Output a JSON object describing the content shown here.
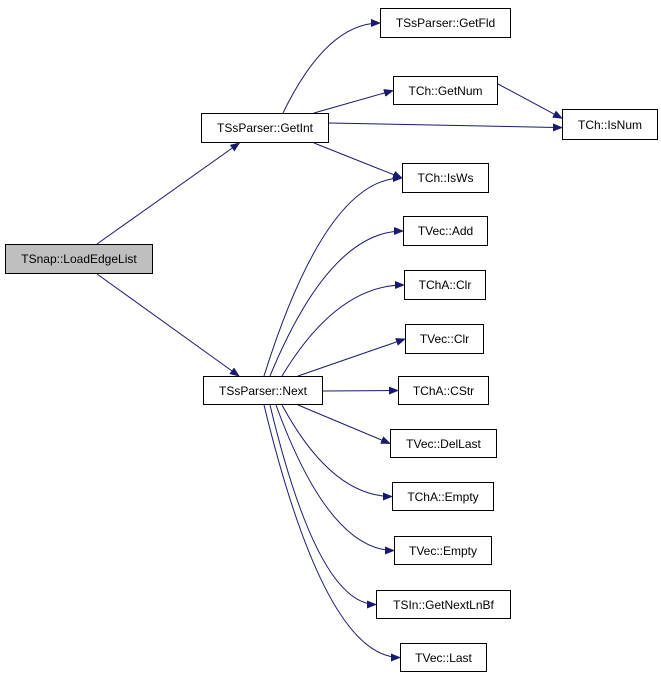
{
  "colors": {
    "edge": "#191970",
    "root_fill": "#bfbfbf",
    "node_fill": "#ffffff",
    "border": "#000000"
  },
  "nodes": [
    {
      "id": "root",
      "label": "TSnap::LoadEdgeList",
      "root": true
    },
    {
      "id": "getint",
      "label": "TSsParser::GetInt"
    },
    {
      "id": "getfld",
      "label": "TSsParser::GetFld"
    },
    {
      "id": "getnum",
      "label": "TCh::GetNum"
    },
    {
      "id": "isnum",
      "label": "TCh::IsNum"
    },
    {
      "id": "isws",
      "label": "TCh::IsWs"
    },
    {
      "id": "vecadd",
      "label": "TVec::Add"
    },
    {
      "id": "chaclr",
      "label": "TChA::Clr"
    },
    {
      "id": "vecclr",
      "label": "TVec::Clr"
    },
    {
      "id": "next",
      "label": "TSsParser::Next"
    },
    {
      "id": "cstr",
      "label": "TChA::CStr"
    },
    {
      "id": "dellast",
      "label": "TVec::DelLast"
    },
    {
      "id": "chaempty",
      "label": "TChA::Empty"
    },
    {
      "id": "vecempty",
      "label": "TVec::Empty"
    },
    {
      "id": "getnextlnbf",
      "label": "TSIn::GetNextLnBf"
    },
    {
      "id": "last",
      "label": "TVec::Last"
    }
  ],
  "edges": [
    [
      "root",
      "getint"
    ],
    [
      "root",
      "next"
    ],
    [
      "getint",
      "getfld"
    ],
    [
      "getint",
      "getnum"
    ],
    [
      "getint",
      "isnum"
    ],
    [
      "getint",
      "isws"
    ],
    [
      "getnum",
      "isnum"
    ],
    [
      "next",
      "isws"
    ],
    [
      "next",
      "vecadd"
    ],
    [
      "next",
      "chaclr"
    ],
    [
      "next",
      "vecclr"
    ],
    [
      "next",
      "cstr"
    ],
    [
      "next",
      "dellast"
    ],
    [
      "next",
      "chaempty"
    ],
    [
      "next",
      "vecempty"
    ],
    [
      "next",
      "getnextlnbf"
    ],
    [
      "next",
      "last"
    ]
  ]
}
